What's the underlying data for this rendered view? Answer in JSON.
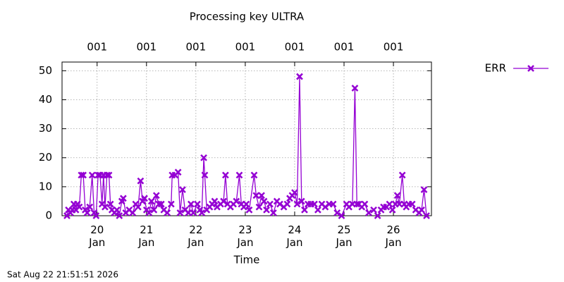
{
  "chart_data": {
    "type": "line",
    "title": "Processing key ULTRA",
    "xlabel": "Time",
    "timestamp": "Sat Aug 22 21:51:51 2026",
    "xlim": [
      19.29,
      26.77
    ],
    "ylim": [
      0,
      53
    ],
    "xticks": [
      {
        "value": 20,
        "label": "20 Jan"
      },
      {
        "value": 21,
        "label": "21 Jan"
      },
      {
        "value": 22,
        "label": "22 Jan"
      },
      {
        "value": 23,
        "label": "23 Jan"
      },
      {
        "value": 24,
        "label": "24 Jan"
      },
      {
        "value": 25,
        "label": "25 Jan"
      },
      {
        "value": 26,
        "label": "26 Jan"
      }
    ],
    "x2ticks": [
      {
        "value": 20,
        "label": "001"
      },
      {
        "value": 21,
        "label": "001"
      },
      {
        "value": 22,
        "label": "001"
      },
      {
        "value": 23,
        "label": "001"
      },
      {
        "value": 24,
        "label": "001"
      },
      {
        "value": 25,
        "label": "001"
      },
      {
        "value": 26,
        "label": "001"
      }
    ],
    "yticks": [
      0,
      10,
      20,
      30,
      40,
      50
    ],
    "grid": true,
    "legend": "outside-right",
    "series": [
      {
        "name": "ERR",
        "color": "#9400d3",
        "x": [
          19.39,
          19.42,
          19.46,
          19.5,
          19.53,
          19.57,
          19.6,
          19.64,
          19.68,
          19.72,
          19.76,
          19.8,
          19.85,
          19.9,
          19.94,
          19.98,
          20.02,
          20.06,
          20.1,
          20.13,
          20.16,
          20.2,
          20.24,
          20.27,
          20.3,
          20.35,
          20.4,
          20.45,
          20.5,
          20.53,
          20.58,
          20.65,
          20.72,
          20.78,
          20.83,
          20.88,
          20.92,
          20.96,
          21.0,
          21.05,
          21.1,
          21.15,
          21.2,
          21.25,
          21.3,
          21.35,
          21.42,
          21.5,
          21.52,
          21.58,
          21.64,
          21.68,
          21.73,
          21.78,
          21.85,
          21.9,
          21.95,
          22.03,
          22.08,
          22.12,
          22.16,
          22.18,
          22.22,
          22.28,
          22.33,
          22.38,
          22.43,
          22.5,
          22.56,
          22.6,
          22.64,
          22.7,
          22.76,
          22.82,
          22.88,
          22.92,
          22.97,
          23.02,
          23.08,
          23.18,
          23.22,
          23.28,
          23.33,
          23.38,
          23.43,
          23.5,
          23.57,
          23.64,
          23.7,
          23.78,
          23.85,
          23.9,
          23.95,
          24.0,
          24.05,
          24.1,
          24.14,
          24.2,
          24.27,
          24.33,
          24.4,
          24.47,
          24.55,
          24.62,
          24.7,
          24.78,
          24.86,
          24.95,
          25.05,
          25.1,
          25.17,
          25.22,
          25.26,
          25.3,
          25.36,
          25.42,
          25.5,
          25.6,
          25.68,
          25.75,
          25.8,
          25.86,
          25.92,
          25.98,
          26.04,
          26.08,
          26.12,
          26.18,
          26.22,
          26.26,
          26.31,
          26.38,
          26.45,
          26.52,
          26.57,
          26.62,
          26.67
        ],
        "values": [
          0,
          2,
          1,
          2,
          4,
          2,
          4,
          3,
          14,
          14,
          2,
          1,
          3,
          14,
          1,
          0,
          14,
          14,
          4,
          14,
          3,
          14,
          14,
          4,
          2,
          1,
          2,
          0,
          5,
          6,
          1,
          2,
          1,
          4,
          3,
          12,
          5,
          6,
          2,
          1,
          5,
          2,
          7,
          4,
          4,
          2,
          1,
          4,
          14,
          14,
          15,
          1,
          9,
          2,
          1,
          4,
          1,
          4,
          2,
          1,
          20,
          14,
          2,
          3,
          4,
          5,
          3,
          4,
          5,
          14,
          4,
          3,
          4,
          5,
          14,
          4,
          3,
          4,
          2,
          14,
          7,
          3,
          7,
          5,
          2,
          4,
          1,
          5,
          4,
          3,
          4,
          6,
          7,
          8,
          4,
          48,
          5,
          2,
          4,
          4,
          4,
          2,
          4,
          3,
          4,
          4,
          1,
          0,
          4,
          3,
          4,
          44,
          4,
          4,
          3,
          4,
          1,
          2,
          0,
          2,
          3,
          3,
          4,
          2,
          4,
          7,
          4,
          14,
          4,
          3,
          4,
          4,
          2,
          1,
          2,
          9,
          0
        ]
      }
    ]
  }
}
